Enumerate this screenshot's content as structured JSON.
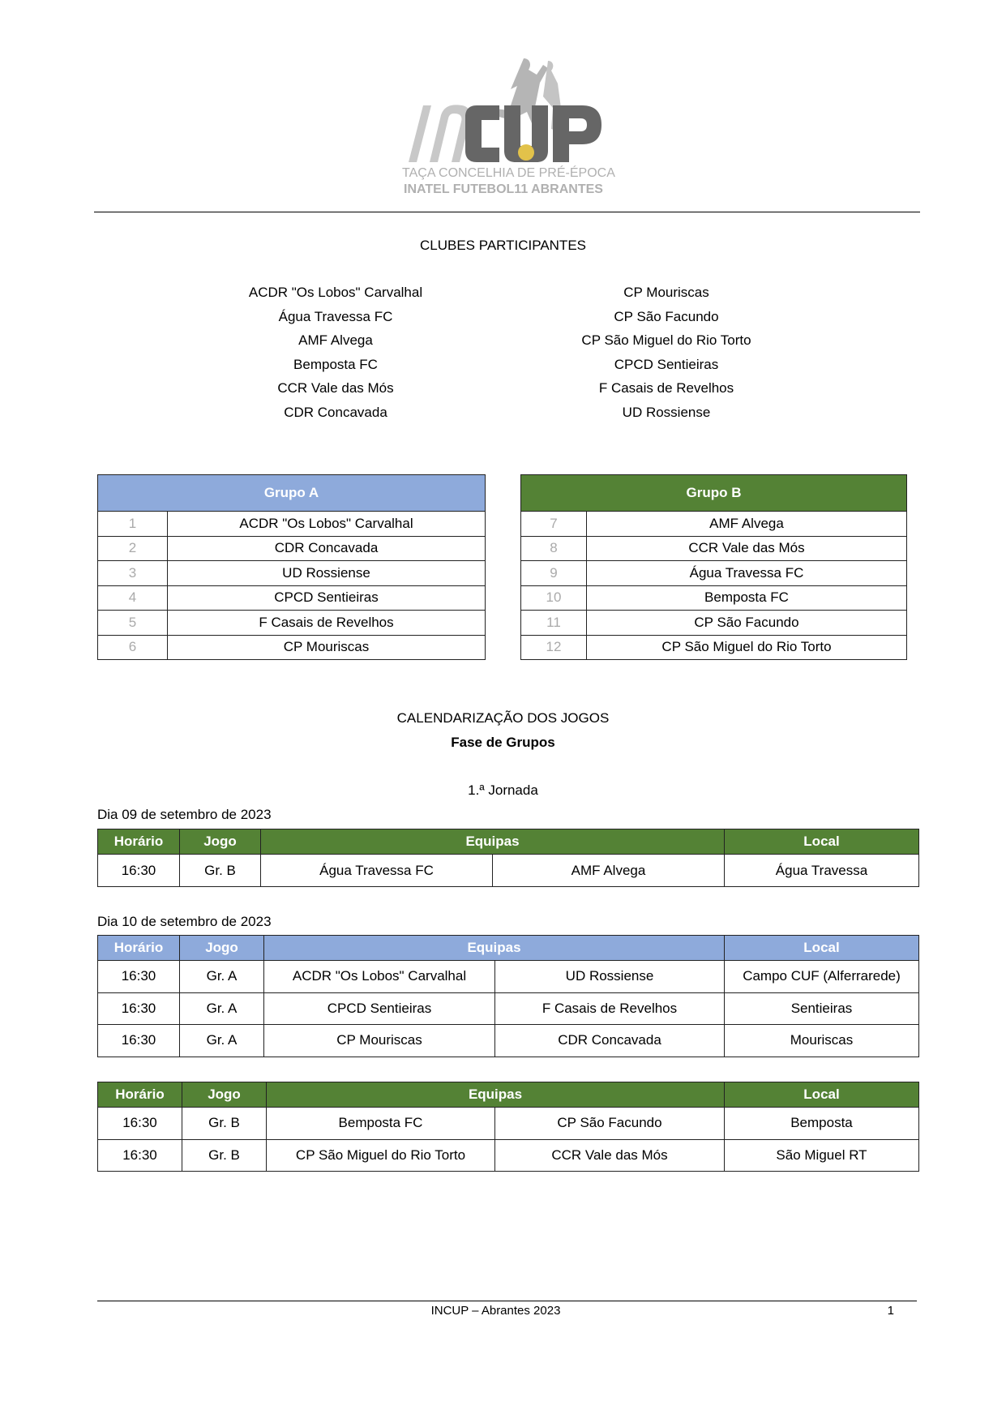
{
  "logo": {
    "text": "INCUP",
    "subtitle1": "TAÇA CONCELHIA DE PRÉ-ÉPOCA",
    "subtitle2": "INATEL FUTEBOL11 ABRANTES"
  },
  "clubs_title": "CLUBES PARTICIPANTES",
  "clubs_left": [
    "ACDR \"Os Lobos\" Carvalhal",
    "Água Travessa FC",
    "AMF Alvega",
    "Bemposta FC",
    "CCR Vale das Mós",
    "CDR Concavada"
  ],
  "clubs_right": [
    "CP Mouriscas",
    "CP São Facundo",
    "CP São Miguel do Rio Torto",
    "CPCD Sentieiras",
    "F Casais de Revelhos",
    "UD Rossiense"
  ],
  "group_a": {
    "title": "Grupo A",
    "color": "#8eaadb",
    "rows": [
      [
        "1",
        "ACDR \"Os Lobos\" Carvalhal"
      ],
      [
        "2",
        "CDR Concavada"
      ],
      [
        "3",
        "UD Rossiense"
      ],
      [
        "4",
        "CPCD Sentieiras"
      ],
      [
        "5",
        "F Casais de Revelhos"
      ],
      [
        "6",
        "CP Mouriscas"
      ]
    ]
  },
  "group_b": {
    "title": "Grupo B",
    "color": "#548235",
    "rows": [
      [
        "7",
        "AMF Alvega"
      ],
      [
        "8",
        "CCR Vale das Mós"
      ],
      [
        "9",
        "Água Travessa FC"
      ],
      [
        "10",
        "Bemposta FC"
      ],
      [
        "11",
        "CP São Facundo"
      ],
      [
        "12",
        "CP São Miguel do Rio Torto"
      ]
    ]
  },
  "schedule_title": "CALENDARIZAÇÃO DOS JOGOS",
  "phase": "Fase de Grupos",
  "round": "1.ª Jornada",
  "headers": {
    "time": "Horário",
    "game": "Jogo",
    "teams": "Equipas",
    "venue": "Local"
  },
  "day1": {
    "label": "Dia 09 de setembro de 2023",
    "rows": [
      [
        "16:30",
        "Gr. B",
        "Água Travessa FC",
        "AMF Alvega",
        "Água Travessa"
      ]
    ]
  },
  "day2": {
    "label": "Dia 10 de setembro de 2023",
    "rows": [
      [
        "16:30",
        "Gr. A",
        "ACDR \"Os Lobos\" Carvalhal",
        "UD Rossiense",
        "Campo CUF (Alferrarede)"
      ],
      [
        "16:30",
        "Gr. A",
        "CPCD Sentieiras",
        "F Casais de Revelhos",
        "Sentieiras"
      ],
      [
        "16:30",
        "Gr. A",
        "CP Mouriscas",
        "CDR Concavada",
        "Mouriscas"
      ]
    ]
  },
  "day2b": {
    "rows": [
      [
        "16:30",
        "Gr. B",
        "Bemposta FC",
        "CP São Facundo",
        "Bemposta"
      ],
      [
        "16:30",
        "Gr. B",
        "CP São Miguel do Rio Torto",
        "CCR Vale das Mós",
        "São Miguel RT"
      ]
    ]
  },
  "footer": {
    "text": "INCUP – Abrantes 2023",
    "page": "1"
  }
}
